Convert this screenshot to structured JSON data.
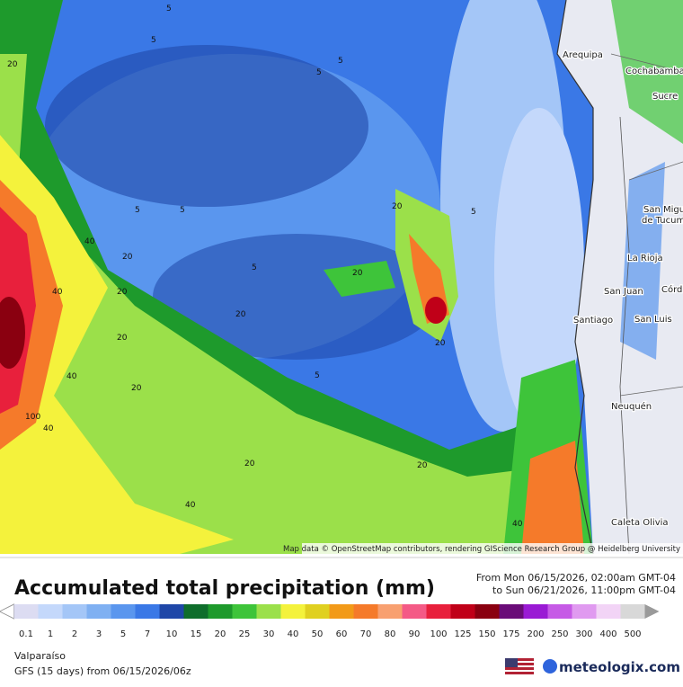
{
  "map": {
    "places": [
      "Arequipa",
      "Cochabamba",
      "Sucre",
      "San Migu",
      "de Tucum",
      "La Rioja",
      "San Juan",
      "Córd",
      "Santiago",
      "San Luis",
      "Neuquén",
      "Caleta Olivia"
    ],
    "contour_labels": [
      "5",
      "5",
      "5",
      "5",
      "5",
      "5",
      "5",
      "5",
      "5",
      "20",
      "20",
      "20",
      "20",
      "20",
      "20",
      "20",
      "20",
      "20",
      "20",
      "20",
      "40",
      "40",
      "40",
      "40",
      "40",
      "40",
      "100"
    ],
    "attribution": "Map data © OpenStreetMap contributors, rendering GIScience Research Group @ Heidelberg University"
  },
  "legend": {
    "title": "Accumulated total precipitation (mm)",
    "period_from": "From Mon 06/15/2026, 02:00am GMT-04",
    "period_to": "to Sun 06/21/2026, 11:00pm GMT-04",
    "ticks": [
      0.1,
      1,
      2,
      3,
      5,
      7,
      10,
      15,
      20,
      25,
      30,
      40,
      50,
      60,
      70,
      80,
      90,
      100,
      125,
      150,
      175,
      200,
      250,
      300,
      400,
      500
    ],
    "colors": [
      "#dcdcf2",
      "#c4d8fb",
      "#a4c6f7",
      "#7fb0f2",
      "#5a96ee",
      "#3a78e6",
      "#1f47a8",
      "#0f6e2c",
      "#1e9a2c",
      "#3ec43a",
      "#9be04a",
      "#f4f23c",
      "#e0d020",
      "#f29a18",
      "#f57a2a",
      "#f8a070",
      "#f45a86",
      "#e8203c",
      "#c00018",
      "#8a0010",
      "#6a0c78",
      "#9a1ad4",
      "#c65ae6",
      "#e09af0",
      "#f2d4f6",
      "#d8d8d8"
    ]
  },
  "footer": {
    "location": "Valparaíso",
    "model": "GFS (15 days) from 06/15/2026/06z",
    "brand": "meteologix.com"
  }
}
